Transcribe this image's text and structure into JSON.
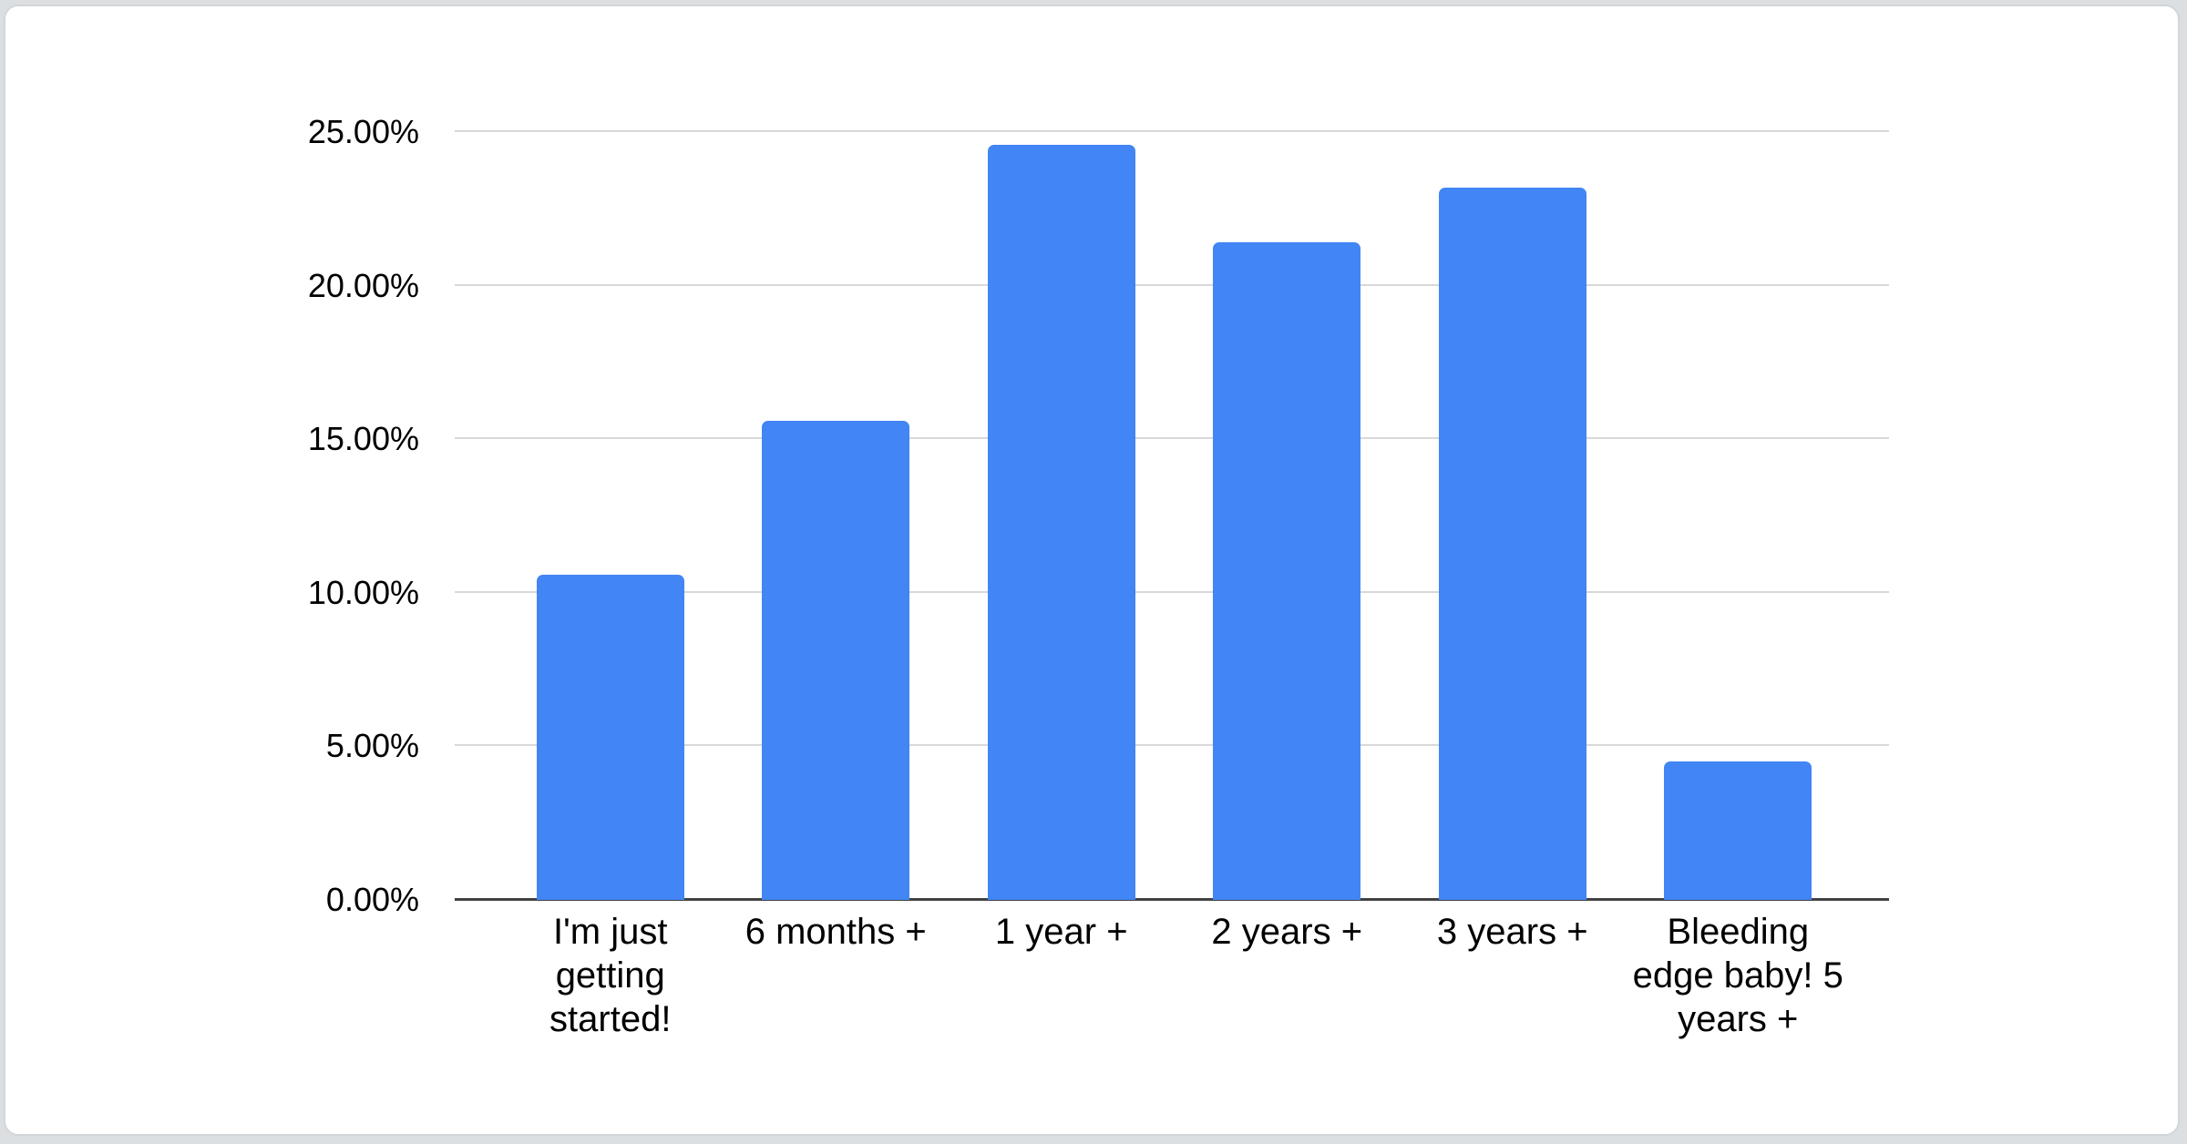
{
  "chart_data": {
    "type": "bar",
    "title": "",
    "xlabel": "",
    "ylabel": "",
    "categories": [
      "I'm just getting started!",
      "6 months +",
      "1 year +",
      "2 years +",
      "3 years +",
      "Bleeding edge baby! 5 years +"
    ],
    "values": [
      10.6,
      15.6,
      24.6,
      21.4,
      23.2,
      4.5
    ],
    "value_unit": "%",
    "ylim": [
      0,
      25
    ],
    "yticks": [
      {
        "value": 0,
        "label": "0.00%"
      },
      {
        "value": 5,
        "label": "5.00%"
      },
      {
        "value": 10,
        "label": "10.00%"
      },
      {
        "value": 15,
        "label": "15.00%"
      },
      {
        "value": 20,
        "label": "20.00%"
      },
      {
        "value": 25,
        "label": "25.00%"
      }
    ],
    "grid": true,
    "legend": false,
    "legend_position": "none",
    "colors": {
      "bar": "#4285f4",
      "gridline": "#d8d8d8",
      "axis_line": "#424242",
      "text": "#000000",
      "card_background": "#ffffff",
      "page_background": "#dcdfe2",
      "card_border": "#d3d6d9"
    }
  }
}
